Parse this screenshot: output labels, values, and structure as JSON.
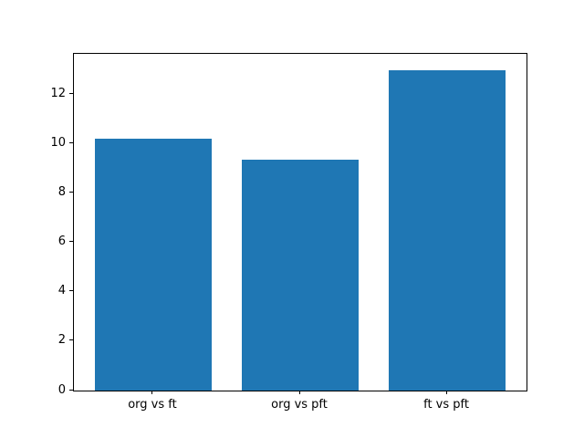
{
  "chart_data": {
    "type": "bar",
    "categories": [
      "org vs ft",
      "org vs pft",
      "ft vs pft"
    ],
    "values": [
      10.2,
      9.35,
      13.0
    ],
    "title": "",
    "xlabel": "",
    "ylabel": "",
    "ylim": [
      0,
      13.65
    ],
    "yticks": [
      0,
      2,
      4,
      6,
      8,
      10,
      12
    ],
    "bar_color": "#1f77b4",
    "grid": false,
    "legend": null,
    "background_color": "#ffffff",
    "axis_color": "#000000"
  }
}
